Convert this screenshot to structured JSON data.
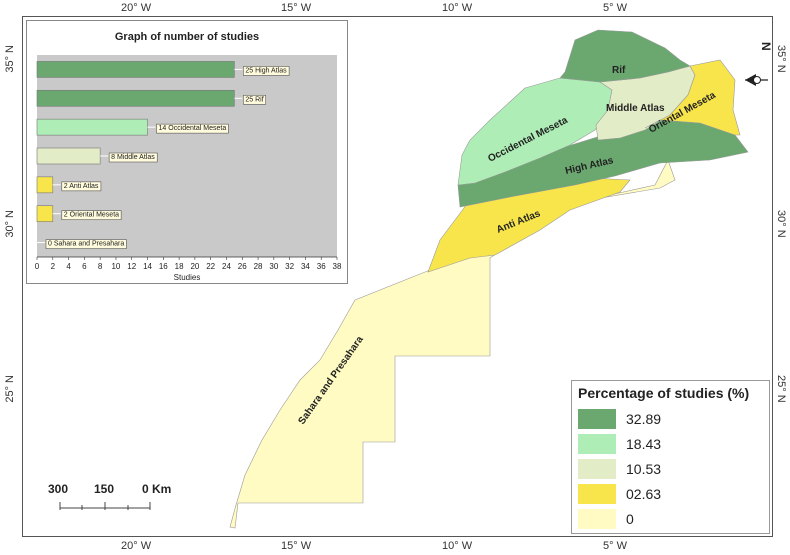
{
  "coords": {
    "top_lon": [
      "20° W",
      "15° W",
      "10° W",
      "5° W"
    ],
    "bottom_lon": [
      "20° W",
      "15° W",
      "10° W",
      "5° W"
    ],
    "left_lat": [
      "35° N",
      "30° N",
      "25° N"
    ],
    "right_lat": [
      "35° N",
      "30° N",
      "25° N"
    ]
  },
  "regions": {
    "rif": "Rif",
    "middle_atlas": "Middle Atlas",
    "occidental_meseta": "Occidental Meseta",
    "oriental_meseta": "Oriental Meseta",
    "high_atlas": "High Atlas",
    "anti_atlas": "Anti Atlas",
    "sahara": "Sahara and Presahara"
  },
  "colors": {
    "c32": "#6aa870",
    "c18": "#aeeeb6",
    "c10": "#e2ecc6",
    "c02": "#f8e54c",
    "c0": "#fffbc2"
  },
  "chart_data": {
    "type": "bar",
    "title": "Graph of number of studies",
    "xlabel": "Studies",
    "xlim": [
      0,
      38
    ],
    "x_ticks": [
      0,
      2,
      4,
      6,
      8,
      10,
      12,
      14,
      16,
      18,
      20,
      22,
      24,
      26,
      28,
      30,
      32,
      34,
      36,
      38
    ],
    "categories": [
      "High Atlas",
      "Rif",
      "Occidental Meseta",
      "Middle Atlas",
      "Anti Atlas",
      "Oriental Meseta",
      "Sahara and Presahara"
    ],
    "values": [
      25,
      25,
      14,
      8,
      2,
      2,
      0
    ],
    "labels": [
      "25 High Atlas",
      "25 Rif",
      "14 Occidental Meseta",
      "8 Middle Atlas",
      "2 Anti Atlas",
      "2 Oriental Meseta",
      "0 Sahara and Presahara"
    ],
    "bar_colors": [
      "#6aa870",
      "#6aa870",
      "#aeeeb6",
      "#e2ecc6",
      "#f8e54c",
      "#f8e54c",
      "#fffbc2"
    ],
    "grid": false
  },
  "legend": {
    "title": "Percentage of studies (%)",
    "items": [
      {
        "label": "32.89",
        "color": "#6aa870"
      },
      {
        "label": "18.43",
        "color": "#aeeeb6"
      },
      {
        "label": "10.53",
        "color": "#e2ecc6"
      },
      {
        "label": "02.63",
        "color": "#f8e54c"
      },
      {
        "label": "0",
        "color": "#fffbc2"
      }
    ]
  },
  "scale": {
    "labels": [
      "300",
      "150",
      "0 Km"
    ]
  },
  "north_label": "N"
}
